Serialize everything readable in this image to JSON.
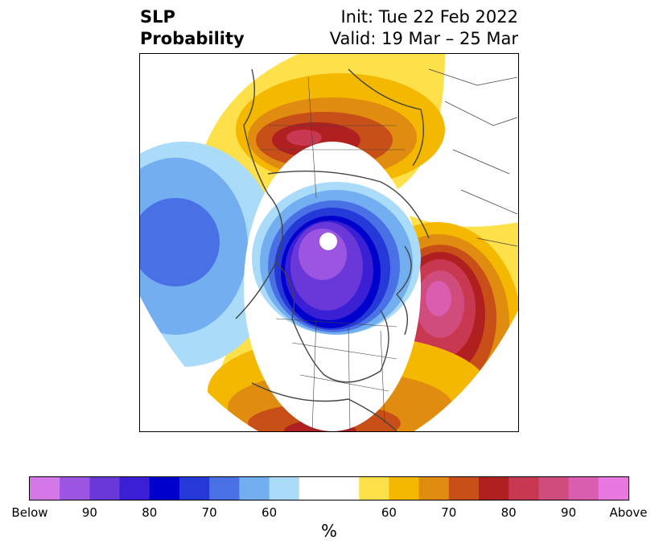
{
  "title": {
    "left_line1": "SLP",
    "left_line2": "Probability",
    "right_line1": "Init: Tue 22 Feb 2022",
    "right_line2": "Valid: 19 Mar – 25 Mar"
  },
  "colorbar": {
    "unit": "%",
    "colors": [
      "#d478e8",
      "#9b55e0",
      "#6a38d8",
      "#3a1fd4",
      "#0000cc",
      "#2538d8",
      "#4a70e6",
      "#72aef0",
      "#aadcfa",
      "#ffffff",
      "#ffffff",
      "#fde04a",
      "#f5b800",
      "#e08c10",
      "#c85018",
      "#b02020",
      "#c83850",
      "#d04c7c",
      "#da5eb0",
      "#e878e0"
    ],
    "tick_labels": [
      "Below",
      "90",
      "80",
      "70",
      "60",
      "60",
      "70",
      "80",
      "90",
      "Above"
    ]
  },
  "colors": {
    "land_outline": "#444444",
    "below_scale": [
      "#aadcfa",
      "#72aef0",
      "#4a70e6",
      "#2538d8",
      "#0000cc",
      "#3a1fd4",
      "#6a38d8",
      "#9b55e0",
      "#d478e8"
    ],
    "above_scale": [
      "#fde04a",
      "#f5b800",
      "#e08c10",
      "#c85018",
      "#b02020",
      "#c83850",
      "#d04c7c",
      "#da5eb0",
      "#e878e0"
    ]
  }
}
